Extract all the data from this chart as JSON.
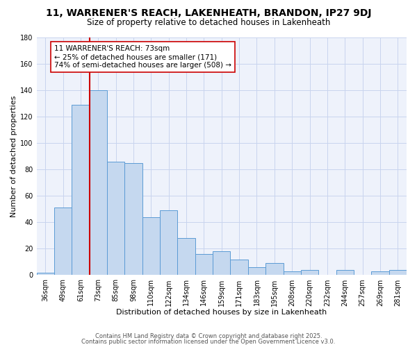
{
  "title": "11, WARRENER'S REACH, LAKENHEATH, BRANDON, IP27 9DJ",
  "subtitle": "Size of property relative to detached houses in Lakenheath",
  "xlabel": "Distribution of detached houses by size in Lakenheath",
  "ylabel": "Number of detached properties",
  "categories": [
    "36sqm",
    "49sqm",
    "61sqm",
    "73sqm",
    "85sqm",
    "98sqm",
    "110sqm",
    "122sqm",
    "134sqm",
    "146sqm",
    "159sqm",
    "171sqm",
    "183sqm",
    "195sqm",
    "208sqm",
    "220sqm",
    "232sqm",
    "244sqm",
    "257sqm",
    "269sqm",
    "281sqm"
  ],
  "values": [
    2,
    51,
    129,
    140,
    86,
    85,
    44,
    49,
    28,
    16,
    18,
    12,
    6,
    9,
    3,
    4,
    0,
    4,
    0,
    3,
    4
  ],
  "bar_color": "#c5d8ef",
  "bar_edge_color": "#5b9bd5",
  "redline_index": 3,
  "redline_color": "#cc0000",
  "annotation_text": "11 WARRENER'S REACH: 73sqm\n← 25% of detached houses are smaller (171)\n74% of semi-detached houses are larger (508) →",
  "annotation_box_edge": "#cc0000",
  "annotation_box_bg": "#ffffff",
  "ylim": [
    0,
    180
  ],
  "yticks": [
    0,
    20,
    40,
    60,
    80,
    100,
    120,
    140,
    160,
    180
  ],
  "footer_line1": "Contains HM Land Registry data © Crown copyright and database right 2025.",
  "footer_line2": "Contains public sector information licensed under the Open Government Licence v3.0.",
  "bg_color": "#eef2fb",
  "grid_color": "#c8d4ee",
  "title_fontsize": 10,
  "subtitle_fontsize": 8.5,
  "axis_label_fontsize": 8,
  "tick_fontsize": 7,
  "annotation_fontsize": 7.5,
  "footer_fontsize": 6
}
